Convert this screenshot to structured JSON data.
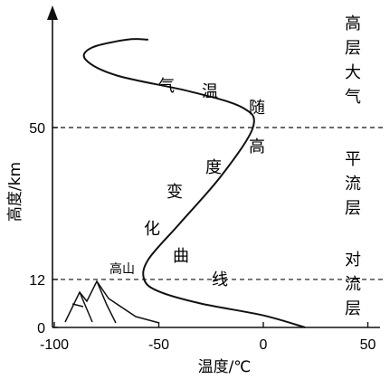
{
  "axes": {
    "x_label": "温度/℃",
    "y_label": "高度/km",
    "x_ticks": [
      "-100",
      "-50",
      "0",
      "50"
    ],
    "x_tick_values": [
      -100,
      -50,
      0,
      50
    ],
    "y_ticks": [
      "0",
      "12",
      "50"
    ],
    "y_tick_values": [
      0,
      12,
      50
    ]
  },
  "curve_label_chars": [
    "气",
    "温",
    "随",
    "高",
    "度",
    "变",
    "化",
    "曲",
    "线"
  ],
  "layers": [
    {
      "name_chars": [
        "高",
        "层",
        "大",
        "气"
      ]
    },
    {
      "name_chars": [
        "平",
        "流",
        "层"
      ]
    },
    {
      "name_chars": [
        "对",
        "流",
        "层"
      ]
    }
  ],
  "mountain_label": "高山",
  "boundaries_km": [
    12,
    50
  ],
  "chart_data": {
    "type": "line",
    "x": [
      20,
      0,
      -30,
      -50,
      -57,
      -55,
      -40,
      -20,
      -5,
      -10,
      -35,
      -70,
      -85,
      -82,
      -65,
      -55
    ],
    "y": [
      0,
      3,
      6,
      9,
      12,
      17,
      26,
      38,
      50,
      55,
      59,
      63,
      67,
      70,
      72,
      72
    ],
    "xlim": [
      -100,
      55
    ],
    "ylim": [
      0,
      75
    ]
  }
}
